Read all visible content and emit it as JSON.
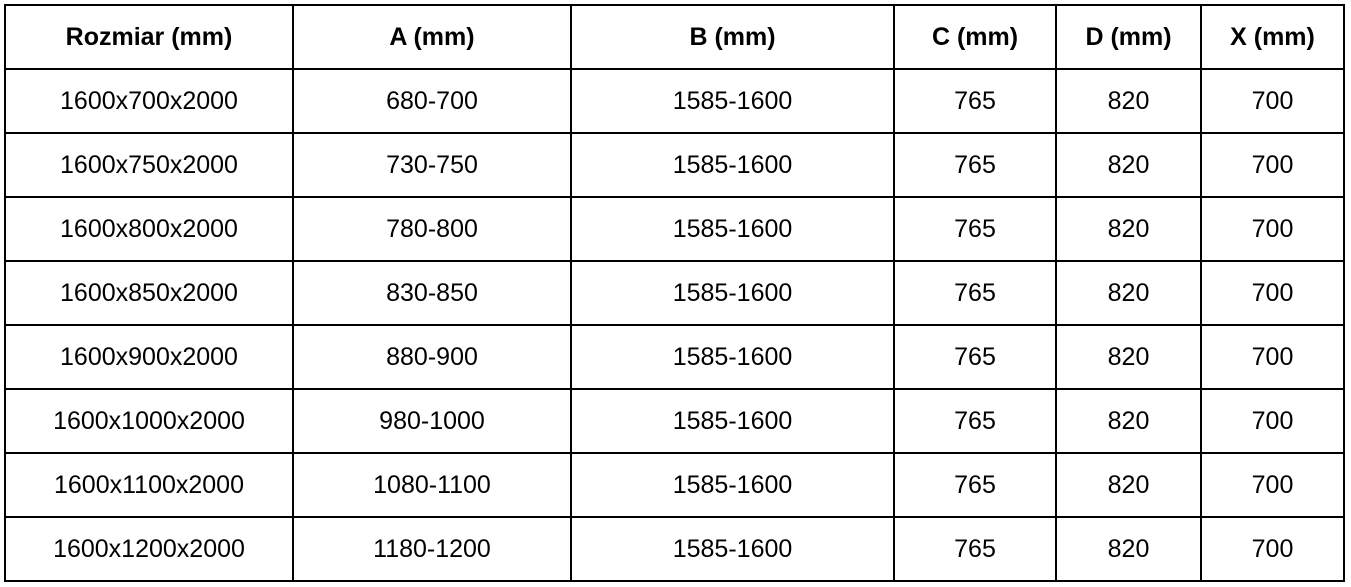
{
  "table": {
    "headers": [
      "Rozmiar (mm)",
      "A (mm)",
      "B (mm)",
      "C (mm)",
      "D (mm)",
      "X (mm)"
    ],
    "rows": [
      [
        "1600x700x2000",
        "680-700",
        "1585-1600",
        "765",
        "820",
        "700"
      ],
      [
        "1600x750x2000",
        "730-750",
        "1585-1600",
        "765",
        "820",
        "700"
      ],
      [
        "1600x800x2000",
        "780-800",
        "1585-1600",
        "765",
        "820",
        "700"
      ],
      [
        "1600x850x2000",
        "830-850",
        "1585-1600",
        "765",
        "820",
        "700"
      ],
      [
        "1600x900x2000",
        "880-900",
        "1585-1600",
        "765",
        "820",
        "700"
      ],
      [
        "1600x1000x2000",
        "980-1000",
        "1585-1600",
        "765",
        "820",
        "700"
      ],
      [
        "1600x1100x2000",
        "1080-1100",
        "1585-1600",
        "765",
        "820",
        "700"
      ],
      [
        "1600x1200x2000",
        "1180-1200",
        "1585-1600",
        "765",
        "820",
        "700"
      ]
    ]
  }
}
